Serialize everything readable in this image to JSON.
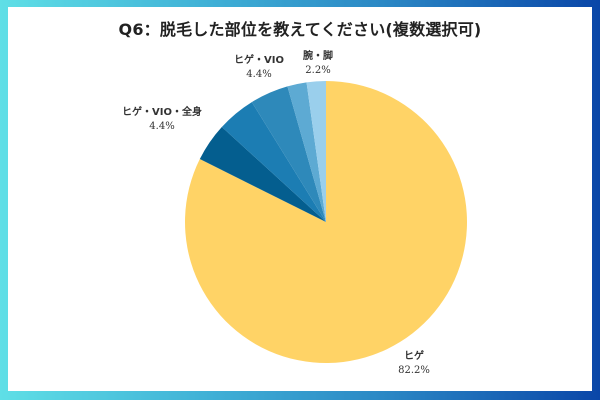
{
  "title": "Q6：脱毛した部位を教えてください(複数選択可)",
  "chart_data": {
    "type": "pie",
    "title": "Q6：脱毛した部位を教えてください(複数選択可)",
    "start_angle_deg": 0,
    "direction": "clockwise",
    "slices": [
      {
        "label": "ヒゲ",
        "value": 82.2,
        "color": "#FFD366",
        "label_visible": true
      },
      {
        "label": "ヒゲ・VIO・全身",
        "value": 4.4,
        "color": "#045E8F",
        "label_visible": true
      },
      {
        "label": "",
        "value": 4.4,
        "color": "#1C7DB3",
        "label_visible": false
      },
      {
        "label": "ヒゲ・VIO",
        "value": 4.4,
        "color": "#2E89BA",
        "label_visible": true
      },
      {
        "label": "",
        "value": 2.2,
        "color": "#5DAAD3",
        "label_visible": false
      },
      {
        "label": "腕・脚",
        "value": 2.2,
        "color": "#9ACFEC",
        "label_visible": true
      }
    ],
    "legend": "none"
  },
  "labels": [
    {
      "name": "ヒゲ",
      "pct": "82.2%"
    },
    {
      "name": "ヒゲ・VIO・全身",
      "pct": "4.4%"
    },
    {
      "name": "ヒゲ・VIO",
      "pct": "4.4%"
    },
    {
      "name": "腕・脚",
      "pct": "2.2%"
    }
  ],
  "frame": {
    "gradient_start": "#5fdfe6",
    "gradient_end": "#0a46a8"
  }
}
